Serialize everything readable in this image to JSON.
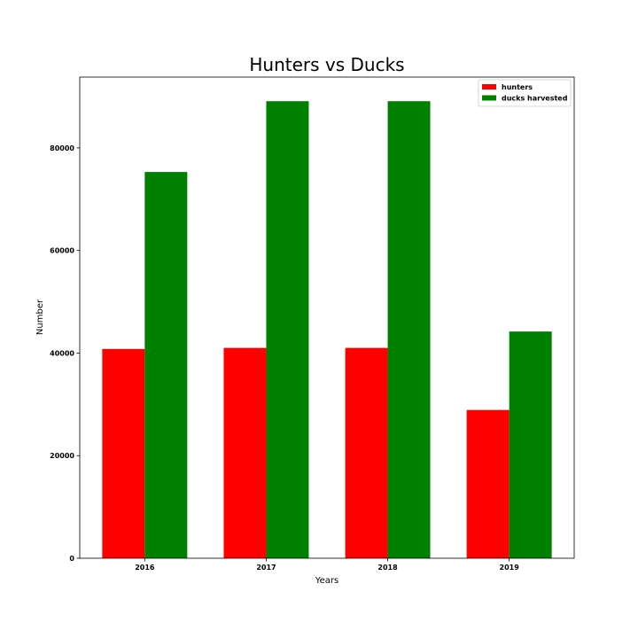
{
  "chart_data": {
    "type": "bar",
    "title": "Hunters vs Ducks",
    "xlabel": "Years",
    "ylabel": "Number",
    "categories": [
      "2016",
      "2017",
      "2018",
      "2019"
    ],
    "series": [
      {
        "name": "hunters",
        "color": "#ff0000",
        "values": [
          40800,
          41000,
          41000,
          28900
        ]
      },
      {
        "name": "ducks harvested",
        "color": "#008000",
        "values": [
          75300,
          89100,
          89100,
          44200
        ]
      }
    ],
    "yticks": [
      0,
      20000,
      40000,
      60000,
      80000
    ],
    "ylim": [
      0,
      93800
    ],
    "grid": false,
    "legend_position": "top-right"
  }
}
